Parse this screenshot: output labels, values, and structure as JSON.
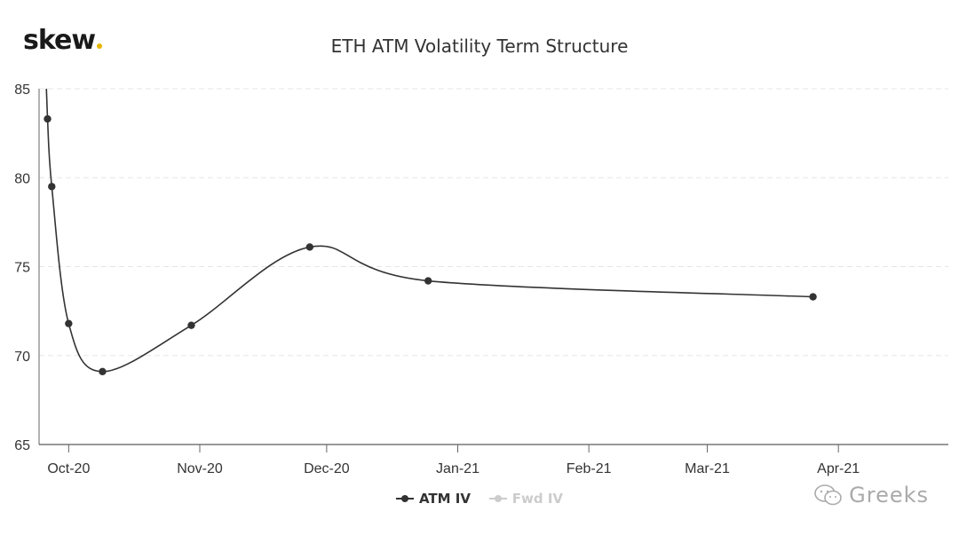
{
  "header": {
    "logo_text": "skew",
    "logo_accent": "#e8b400"
  },
  "chart_data": {
    "type": "line",
    "title": "ETH ATM Volatility Term Structure",
    "xlabel": "",
    "ylabel": "",
    "ylim": [
      65,
      85
    ],
    "yticks": [
      65,
      70,
      75,
      80,
      85
    ],
    "xlim": [
      "2020-09-24",
      "2021-04-27"
    ],
    "xticks": [
      {
        "date": "2020-10-01",
        "label": "Oct-20"
      },
      {
        "date": "2020-11-01",
        "label": "Nov-20"
      },
      {
        "date": "2020-12-01",
        "label": "Dec-20"
      },
      {
        "date": "2021-01-01",
        "label": "Jan-21"
      },
      {
        "date": "2021-02-01",
        "label": "Feb-21"
      },
      {
        "date": "2021-03-01",
        "label": "Mar-21"
      },
      {
        "date": "2021-04-01",
        "label": "Apr-21"
      }
    ],
    "grid": {
      "horizontal": true,
      "vertical": false,
      "style": "dashed"
    },
    "legend_position": "bottom",
    "series": [
      {
        "name": "ATM IV",
        "color": "#333333",
        "visible": true,
        "points": [
          {
            "x": "2020-09-26",
            "y": 83.3
          },
          {
            "x": "2020-09-27",
            "y": 79.5
          },
          {
            "x": "2020-10-01",
            "y": 71.8
          },
          {
            "x": "2020-10-09",
            "y": 69.1
          },
          {
            "x": "2020-10-30",
            "y": 71.7
          },
          {
            "x": "2020-11-27",
            "y": 76.1
          },
          {
            "x": "2020-12-25",
            "y": 74.2
          },
          {
            "x": "2021-03-26",
            "y": 73.3
          }
        ]
      },
      {
        "name": "Fwd IV",
        "color": "#cccccc",
        "visible": false,
        "points": []
      }
    ]
  },
  "watermark": {
    "text": "Greeks",
    "icon": "wechat-icon"
  }
}
